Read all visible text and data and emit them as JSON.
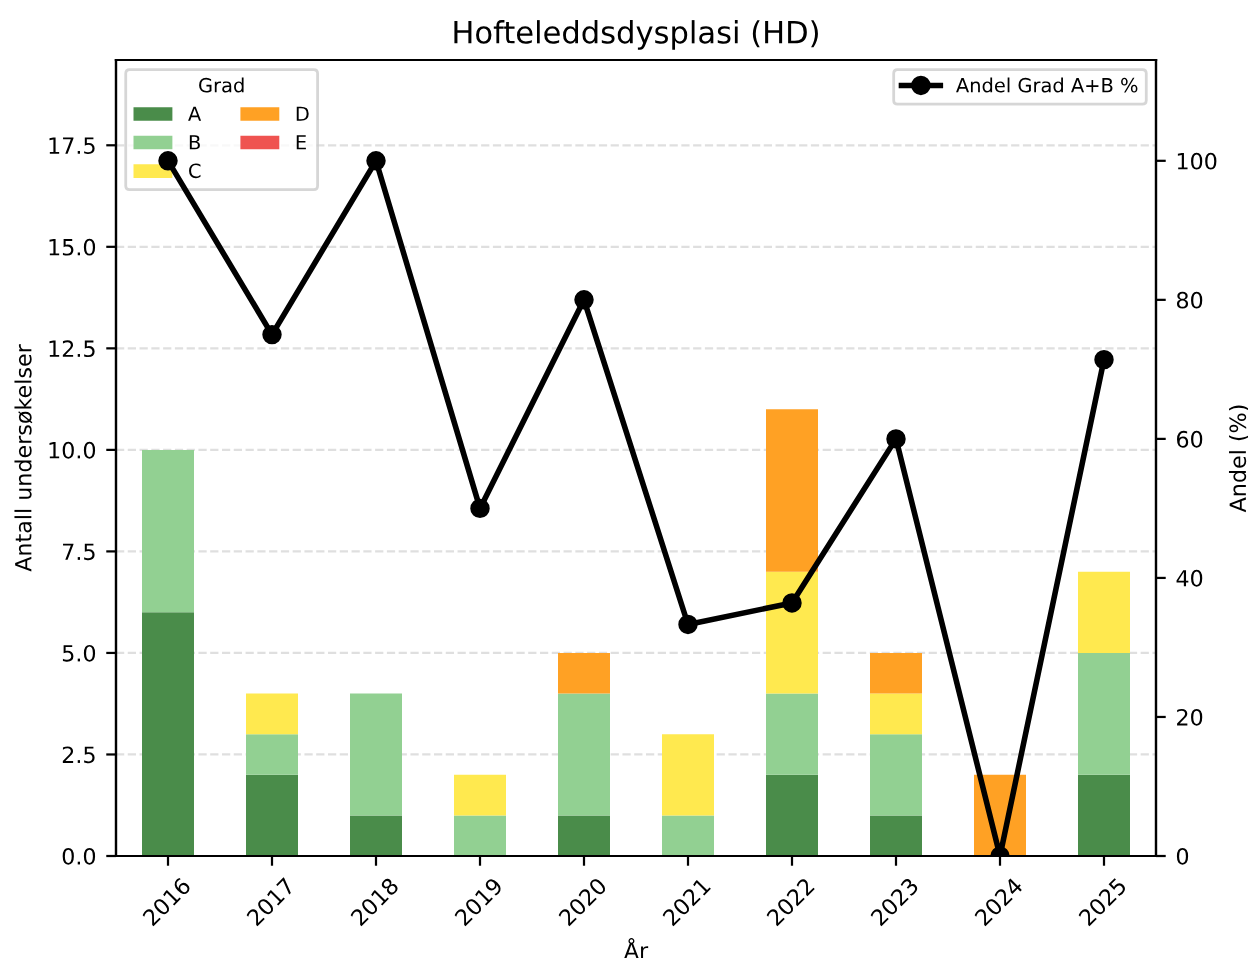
{
  "chart_data": {
    "type": "bar",
    "stacked": true,
    "title": "Hofteleddsdysplasi (HD)",
    "xlabel": "År",
    "ylabel": "Antall undersøkelser",
    "y2label": "Andel (%)",
    "legend_title": "Grad",
    "categories": [
      "2016",
      "2017",
      "2018",
      "2019",
      "2020",
      "2021",
      "2022",
      "2023",
      "2024",
      "2025"
    ],
    "series": [
      {
        "name": "A",
        "color": "#4a8c4a",
        "values": [
          6,
          2,
          1,
          0,
          1,
          0,
          2,
          1,
          0,
          2
        ]
      },
      {
        "name": "B",
        "color": "#92d092",
        "values": [
          4,
          1,
          3,
          1,
          3,
          1,
          2,
          2,
          0,
          3
        ]
      },
      {
        "name": "C",
        "color": "#ffe94f",
        "values": [
          0,
          1,
          0,
          1,
          0,
          2,
          3,
          1,
          0,
          2
        ]
      },
      {
        "name": "D",
        "color": "#ffa124",
        "values": [
          0,
          0,
          0,
          0,
          1,
          0,
          4,
          1,
          2,
          0
        ]
      },
      {
        "name": "E",
        "color": "#ef5350",
        "values": [
          0,
          0,
          0,
          0,
          0,
          0,
          0,
          0,
          0,
          0
        ]
      },
      {
        "name": "Andel Grad A+B %",
        "type": "line",
        "axis": "y2",
        "color": "#000000",
        "marker": "circle",
        "values": [
          100,
          75,
          100,
          50,
          80,
          33.3,
          36.4,
          60,
          0,
          71.4
        ]
      }
    ],
    "ylim": [
      0,
      19.6
    ],
    "yticks": [
      {
        "value": 0,
        "label": "0.0"
      },
      {
        "value": 2.5,
        "label": "2.5"
      },
      {
        "value": 5,
        "label": "5.0"
      },
      {
        "value": 7.5,
        "label": "7.5"
      },
      {
        "value": 10,
        "label": "10.0"
      },
      {
        "value": 12.5,
        "label": "12.5"
      },
      {
        "value": 15,
        "label": "15.0"
      },
      {
        "value": 17.5,
        "label": "17.5"
      }
    ],
    "y2lim": [
      0,
      114.5
    ],
    "y2ticks": [
      0,
      20,
      40,
      60,
      80,
      100
    ],
    "grid": "y",
    "legend": "top left"
  }
}
